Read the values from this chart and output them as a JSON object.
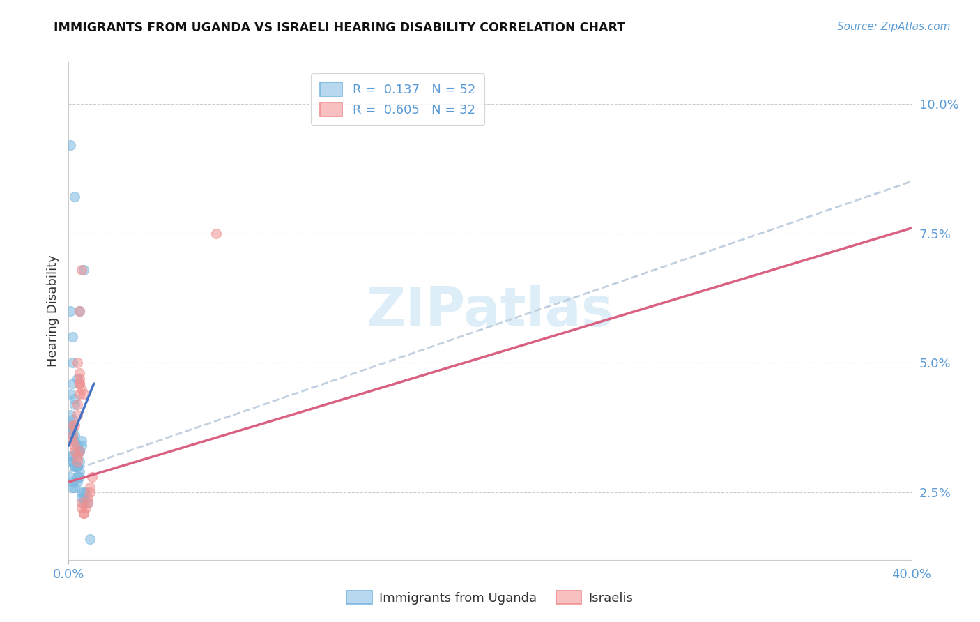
{
  "title": "IMMIGRANTS FROM UGANDA VS ISRAELI HEARING DISABILITY CORRELATION CHART",
  "source": "Source: ZipAtlas.com",
  "ylabel": "Hearing Disability",
  "ytick_labels": [
    "2.5%",
    "5.0%",
    "7.5%",
    "10.0%"
  ],
  "ytick_values": [
    0.025,
    0.05,
    0.075,
    0.1
  ],
  "xtick_labels": [
    "0.0%",
    "40.0%"
  ],
  "xtick_values": [
    0.0,
    0.4
  ],
  "xmin": 0.0,
  "xmax": 0.4,
  "ymin": 0.012,
  "ymax": 0.108,
  "color_blue": "#7ab8e0",
  "color_pink": "#f09090",
  "color_line_blue": "#4472c4",
  "color_line_pink": "#d96080",
  "color_line_dashed": "#c0d0e0",
  "watermark_color": "#ddeef8",
  "legend_label_blue": "Immigrants from Uganda",
  "legend_label_pink": "Israelis",
  "blue_points_x": [
    0.001,
    0.003,
    0.005,
    0.007,
    0.001,
    0.001,
    0.002,
    0.002,
    0.003,
    0.003,
    0.004,
    0.004,
    0.005,
    0.001,
    0.002,
    0.001,
    0.002,
    0.003,
    0.003,
    0.004,
    0.004,
    0.005,
    0.005,
    0.006,
    0.006,
    0.002,
    0.002,
    0.001,
    0.003,
    0.003,
    0.004,
    0.001,
    0.002,
    0.002,
    0.003,
    0.004,
    0.004,
    0.005,
    0.005,
    0.006,
    0.006,
    0.007,
    0.007,
    0.008,
    0.009,
    0.001,
    0.002,
    0.002,
    0.007,
    0.01,
    0.001,
    0.002
  ],
  "blue_points_y": [
    0.092,
    0.082,
    0.06,
    0.068,
    0.038,
    0.037,
    0.037,
    0.036,
    0.036,
    0.035,
    0.034,
    0.033,
    0.033,
    0.032,
    0.032,
    0.031,
    0.031,
    0.03,
    0.03,
    0.03,
    0.03,
    0.031,
    0.033,
    0.034,
    0.035,
    0.038,
    0.039,
    0.04,
    0.042,
    0.043,
    0.047,
    0.028,
    0.027,
    0.026,
    0.026,
    0.027,
    0.028,
    0.029,
    0.028,
    0.025,
    0.024,
    0.024,
    0.023,
    0.025,
    0.023,
    0.06,
    0.055,
    0.05,
    0.025,
    0.016,
    0.044,
    0.046
  ],
  "pink_points_x": [
    0.002,
    0.004,
    0.005,
    0.006,
    0.005,
    0.005,
    0.006,
    0.007,
    0.002,
    0.003,
    0.003,
    0.004,
    0.004,
    0.005,
    0.003,
    0.004,
    0.004,
    0.005,
    0.005,
    0.005,
    0.006,
    0.006,
    0.007,
    0.007,
    0.008,
    0.009,
    0.009,
    0.01,
    0.01,
    0.011,
    0.07,
    0.002
  ],
  "pink_points_y": [
    0.038,
    0.05,
    0.06,
    0.068,
    0.047,
    0.046,
    0.045,
    0.044,
    0.035,
    0.034,
    0.033,
    0.032,
    0.031,
    0.033,
    0.038,
    0.04,
    0.042,
    0.044,
    0.046,
    0.048,
    0.023,
    0.022,
    0.021,
    0.021,
    0.022,
    0.023,
    0.024,
    0.025,
    0.026,
    0.028,
    0.075,
    0.036
  ],
  "blue_line_x": [
    0.0,
    0.012
  ],
  "blue_line_y": [
    0.034,
    0.046
  ],
  "pink_line_x": [
    0.0,
    0.4
  ],
  "pink_line_y": [
    0.027,
    0.076
  ],
  "dashed_line_x": [
    0.0,
    0.4
  ],
  "dashed_line_y": [
    0.029,
    0.085
  ]
}
